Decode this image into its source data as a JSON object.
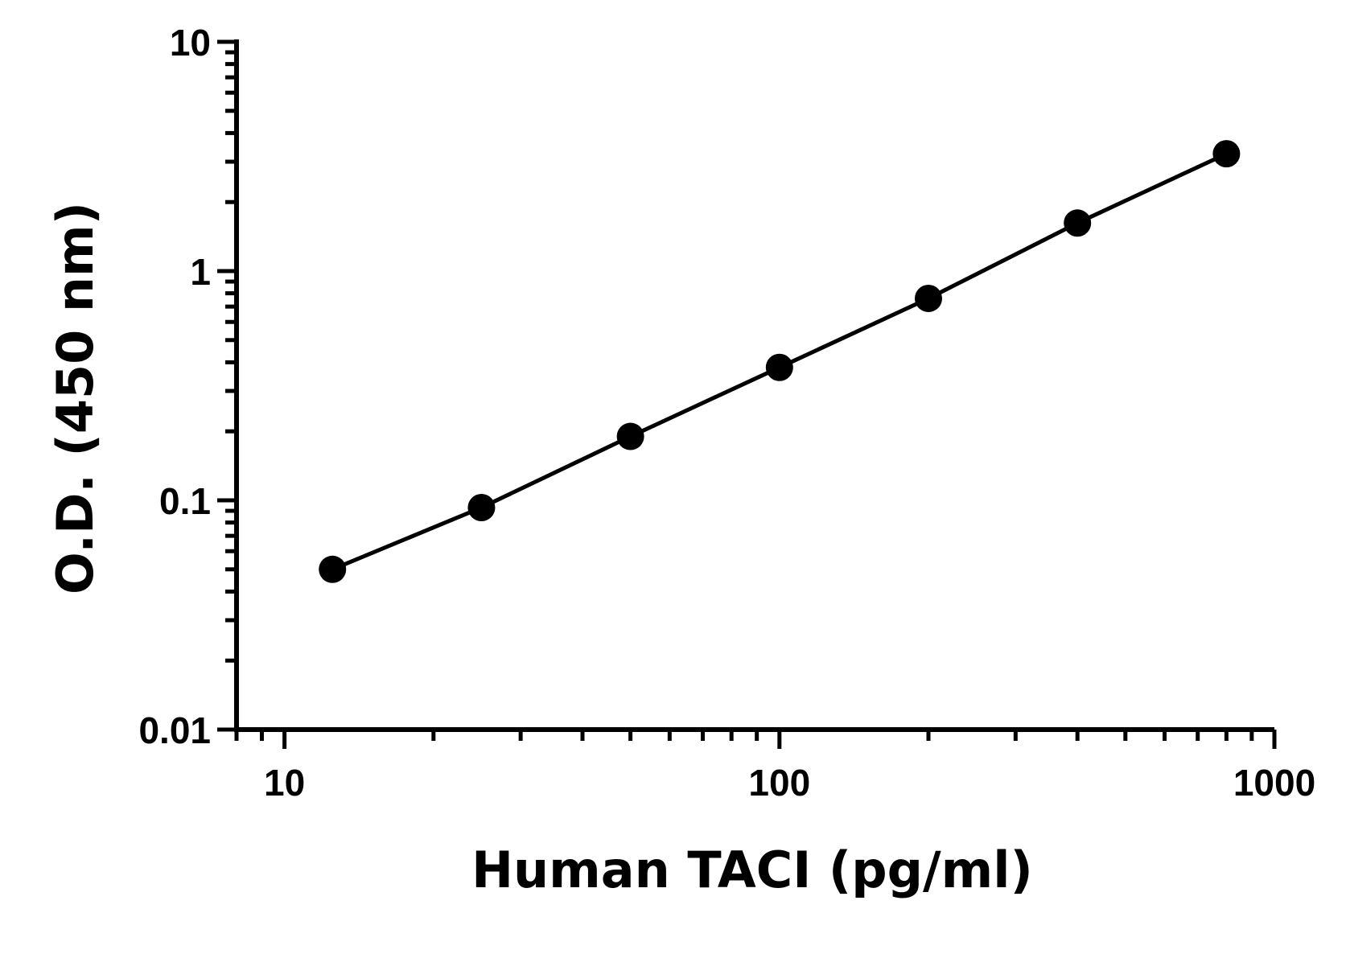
{
  "chart_data": {
    "type": "line",
    "title": "",
    "xlabel": "Human TACI (pg/ml)",
    "ylabel": "O.D. (450 nm)",
    "x_scale": "log",
    "y_scale": "log",
    "xlim": [
      8,
      1000
    ],
    "ylim": [
      0.01,
      10
    ],
    "x_ticks": [
      10,
      100,
      1000
    ],
    "x_tick_labels": [
      "10",
      "100",
      "1000"
    ],
    "y_ticks": [
      0.01,
      0.1,
      1,
      10
    ],
    "y_tick_labels": [
      "0.01",
      "0.1",
      "1",
      "10"
    ],
    "grid": false,
    "legend": "none",
    "series": [
      {
        "x": [
          12.5,
          25,
          50,
          100,
          200,
          400,
          800
        ],
        "y": [
          0.05,
          0.093,
          0.19,
          0.38,
          0.76,
          1.62,
          3.25
        ],
        "color": "#000000",
        "marker": "circle",
        "line": true
      }
    ]
  }
}
